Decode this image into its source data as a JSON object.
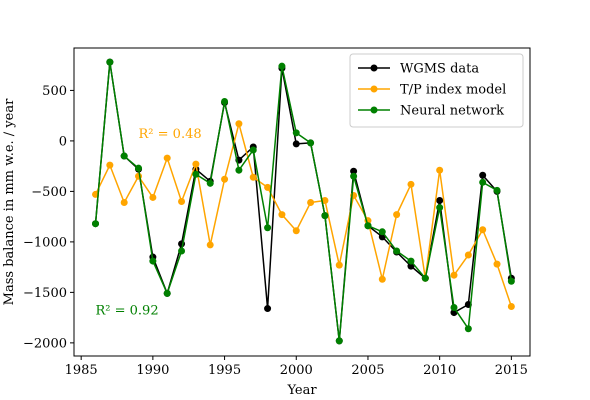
{
  "chart_data": {
    "type": "line",
    "xlabel": "Year",
    "ylabel": "Mass balance in mm w.e. / year",
    "xlim": [
      1984.5,
      2016.3
    ],
    "ylim": [
      -2130,
      920
    ],
    "xticks": [
      1985,
      1990,
      1995,
      2000,
      2005,
      2010,
      2015
    ],
    "xtick_labels": [
      "1985",
      "1990",
      "1995",
      "2000",
      "2005",
      "2010",
      "2015"
    ],
    "yticks": [
      500,
      0,
      -500,
      -1000,
      -1500,
      -2000
    ],
    "ytick_labels": [
      "500",
      "0",
      "−500",
      "−1000",
      "−1500",
      "−2000"
    ],
    "grid": false,
    "legend_position": "top-right",
    "x": [
      1986,
      1987,
      1988,
      1989,
      1990,
      1991,
      1992,
      1993,
      1994,
      1995,
      1996,
      1997,
      1998,
      1999,
      2000,
      2001,
      2002,
      2003,
      2004,
      2005,
      2006,
      2007,
      2008,
      2009,
      2010,
      2011,
      2012,
      2013,
      2014,
      2015
    ],
    "series": [
      {
        "name": "WGMS data",
        "color": "#000000",
        "values": [
          -820,
          780,
          -150,
          -280,
          -1150,
          -1510,
          -1020,
          -280,
          -400,
          380,
          -190,
          -60,
          -1660,
          720,
          -30,
          -20,
          -740,
          -1980,
          -300,
          -840,
          -950,
          -1100,
          -1240,
          -1360,
          -590,
          -1700,
          -1620,
          -340,
          -500,
          -1360
        ]
      },
      {
        "name": "T/P index model",
        "color": "#FFA500",
        "values": [
          -530,
          -240,
          -610,
          -350,
          -560,
          -170,
          -600,
          -230,
          -1030,
          -380,
          170,
          -360,
          -460,
          -730,
          -890,
          -610,
          -590,
          -1230,
          -540,
          -790,
          -1370,
          -730,
          -430,
          -1360,
          -290,
          -1330,
          -1130,
          -880,
          -1220,
          -1640
        ]
      },
      {
        "name": "Neural network",
        "color": "#008000",
        "values": [
          -820,
          780,
          -150,
          -270,
          -1190,
          -1510,
          -1090,
          -330,
          -420,
          390,
          -290,
          -90,
          -860,
          740,
          80,
          -20,
          -740,
          -1980,
          -350,
          -840,
          -900,
          -1090,
          -1190,
          -1360,
          -660,
          -1650,
          -1860,
          -410,
          -490,
          -1390
        ]
      }
    ],
    "annotations": [
      {
        "text": "R² = 0.48",
        "color": "#FFA500",
        "x": 1989,
        "y": 30
      },
      {
        "text": "R² = 0.92",
        "color": "#008000",
        "x": 1986,
        "y": -1720
      }
    ]
  }
}
